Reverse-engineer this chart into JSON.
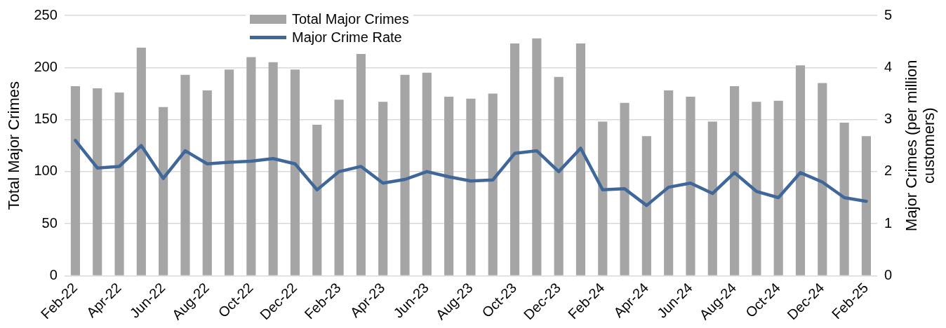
{
  "chart_data": {
    "type": "bar",
    "categories": [
      "Feb-22",
      null,
      "Apr-22",
      null,
      "Jun-22",
      null,
      "Aug-22",
      null,
      "Oct-22",
      null,
      "Dec-22",
      null,
      "Feb-23",
      null,
      "Apr-23",
      null,
      "Jun-23",
      null,
      "Aug-23",
      null,
      "Oct-23",
      null,
      "Dec-23",
      null,
      "Feb-24",
      null,
      "Apr-24",
      null,
      "Jun-24",
      null,
      "Aug-24",
      null,
      "Oct-24",
      null,
      "Dec-24",
      null,
      "Feb-25"
    ],
    "series": [
      {
        "name": "Total Major Crimes",
        "color": "#a5a5a5",
        "values": [
          182,
          180,
          176,
          219,
          162,
          193,
          178,
          198,
          210,
          205,
          198,
          145,
          169,
          213,
          167,
          193,
          195,
          172,
          170,
          175,
          223,
          228,
          191,
          223,
          148,
          166,
          134,
          178,
          172,
          148,
          182,
          167,
          168,
          202,
          185,
          147,
          134
        ]
      },
      {
        "name": "Major Crime Rate",
        "type": "line",
        "axis": "y2",
        "color": "#3f6799",
        "values": [
          2.6,
          2.07,
          2.1,
          2.5,
          1.87,
          2.4,
          2.15,
          2.18,
          2.2,
          2.25,
          2.15,
          1.65,
          2.0,
          2.1,
          1.78,
          1.85,
          2.0,
          1.9,
          1.82,
          1.84,
          2.35,
          2.4,
          2.0,
          2.45,
          1.65,
          1.67,
          1.35,
          1.7,
          1.78,
          1.58,
          1.98,
          1.62,
          1.5,
          1.98,
          1.8,
          1.5,
          1.43
        ]
      }
    ],
    "ylabel": "Total Major Crimes",
    "y2label": "Major Crimes (per million\ncustomers)",
    "ylim": [
      0,
      250
    ],
    "yticks": [
      0,
      50,
      100,
      150,
      200,
      250
    ],
    "y2lim": [
      0,
      5
    ],
    "y2ticks": [
      0,
      1,
      2,
      3,
      4,
      5
    ],
    "grid": "y",
    "legend": "top",
    "marker": "none"
  }
}
